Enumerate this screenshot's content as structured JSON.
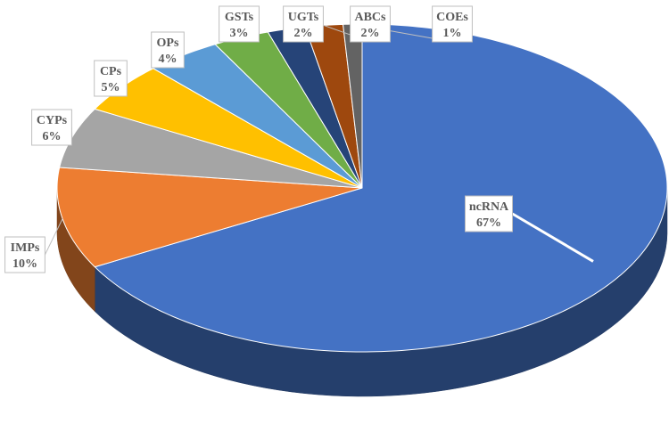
{
  "chart_data": {
    "type": "pie",
    "title": "",
    "categories": [
      "ncRNA",
      "IMPs",
      "CYPs",
      "CPs",
      "OPs",
      "GSTs",
      "UGTs",
      "ABCs",
      "COEs"
    ],
    "values": [
      67,
      10,
      6,
      5,
      4,
      3,
      2,
      2,
      1
    ],
    "labels": [
      "67%",
      "10%",
      "6%",
      "5%",
      "4%",
      "3%",
      "2%",
      "2%",
      "1%"
    ],
    "colors": [
      "#4472C4",
      "#ED7D31",
      "#A5A5A5",
      "#FFC000",
      "#5B9BD5",
      "#70AD47",
      "#264478",
      "#9E480E",
      "#636363"
    ],
    "style": "3d-pie",
    "legend": "none"
  }
}
